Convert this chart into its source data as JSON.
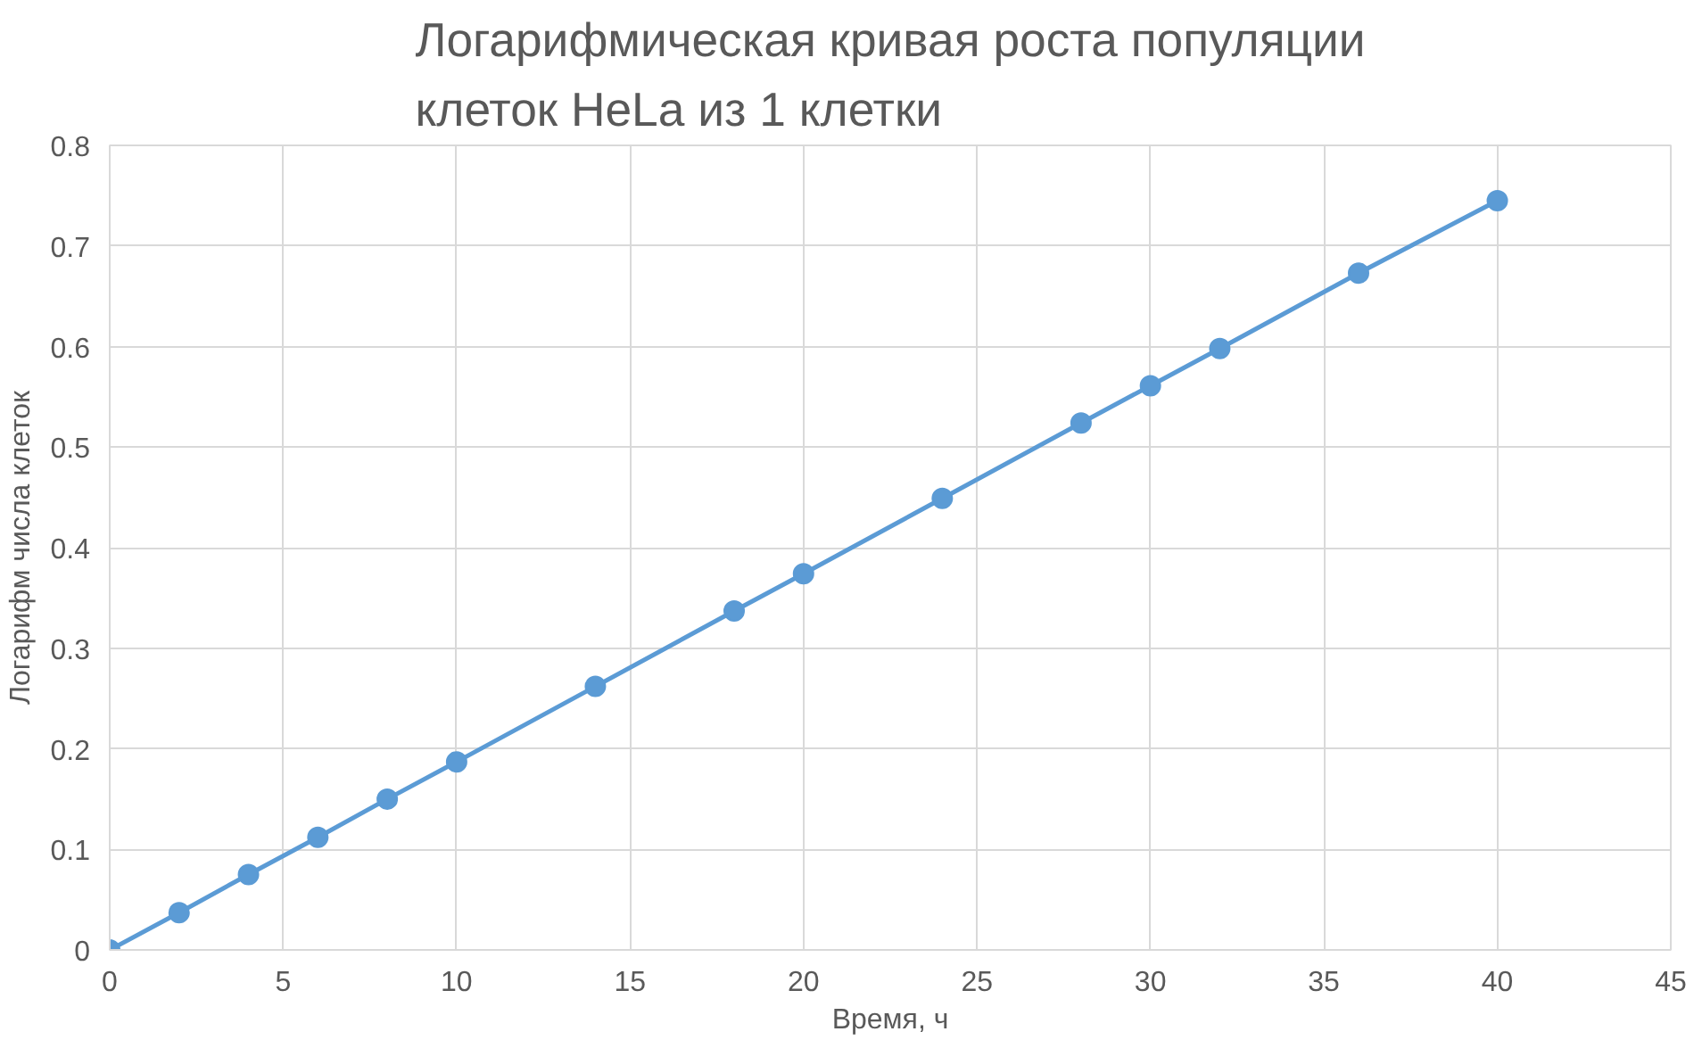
{
  "chart_data": {
    "type": "line",
    "title": "Логарифмическая кривая роста популяции\nклеток HeLa из 1 клетки",
    "xlabel": "Время, ч",
    "ylabel": "Логарифм числа клеток",
    "x": [
      0,
      2,
      4,
      6,
      8,
      10,
      14,
      18,
      20,
      24,
      28,
      30,
      32,
      36,
      40
    ],
    "series": [
      {
        "color": "#5b9bd5",
        "values": [
          0,
          0.037,
          0.075,
          0.112,
          0.15,
          0.187,
          0.262,
          0.337,
          0.374,
          0.449,
          0.524,
          0.561,
          0.598,
          0.673,
          0.745
        ]
      }
    ],
    "xlim": [
      0,
      45
    ],
    "xticks": [
      0,
      5,
      10,
      15,
      20,
      25,
      30,
      35,
      40,
      45
    ],
    "ylim": [
      0,
      0.8
    ],
    "yticks": [
      0,
      0.1,
      0.2,
      0.3,
      0.4,
      0.5,
      0.6,
      0.7,
      0.8
    ],
    "grid": true,
    "marker": "circle",
    "line_style": "solid"
  }
}
